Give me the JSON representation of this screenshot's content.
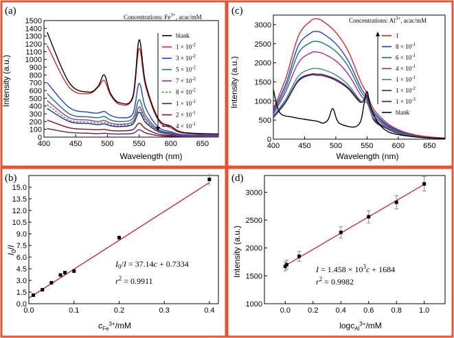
{
  "colors": {
    "frame": "#e8542d",
    "fit_line": "#c8102e",
    "marker": "#000000"
  },
  "chart_data": [
    {
      "panel": "(a)",
      "type": "line",
      "title": "",
      "legend_title": "Concentrations: Fe3+, acac/mM",
      "legend_title_parts": {
        "pre": "Concentrations: Fe",
        "sup": "3+",
        "post": ", acac/mM"
      },
      "legend_position": "top-right",
      "xlabel": "Wavelength (nm)",
      "ylabel": "Intensity (a.u.)",
      "xlim": [
        400,
        675
      ],
      "ylim": [
        0,
        1500
      ],
      "xticks": [
        "400",
        "450",
        "500",
        "550",
        "600",
        "650"
      ],
      "yticks": [
        "0",
        "100",
        "200",
        "300",
        "400",
        "500",
        "600",
        "700",
        "800",
        "900",
        "1000",
        "1100",
        "1200",
        "1300",
        "1400",
        "1500"
      ],
      "peaks_x": [
        405,
        440,
        470,
        485,
        495,
        505,
        520,
        540,
        550,
        560,
        580,
        600,
        620,
        675
      ],
      "series": [
        {
          "name": "blank",
          "label": {
            "base": "blank"
          },
          "color": "#000000",
          "dash": "",
          "values": [
            1350,
            700,
            580,
            650,
            800,
            560,
            440,
            520,
            1250,
            700,
            240,
            140,
            60,
            40
          ]
        },
        {
          "name": "1 × 10-2",
          "label": {
            "base": "1 × 10",
            "exp": "-2"
          },
          "color": "#d92828",
          "dash": "",
          "values": [
            1180,
            640,
            560,
            640,
            730,
            540,
            420,
            500,
            1140,
            660,
            220,
            120,
            50,
            30
          ]
        },
        {
          "name": "3 × 10-2",
          "label": {
            "base": "3 × 10",
            "exp": "-2"
          },
          "color": "#1f3fd6",
          "dash": "",
          "values": [
            700,
            380,
            320,
            310,
            330,
            280,
            250,
            300,
            690,
            380,
            130,
            70,
            30,
            20
          ]
        },
        {
          "name": "5 × 10-2",
          "label": {
            "base": "5 × 10",
            "exp": "-2"
          },
          "color": "#0f7a6c",
          "dash": "",
          "values": [
            560,
            300,
            260,
            250,
            265,
            220,
            200,
            240,
            480,
            280,
            100,
            55,
            25,
            15
          ]
        },
        {
          "name": "7 × 10-2",
          "label": {
            "base": "7 × 10",
            "exp": "-2"
          },
          "color": "#a42aa8",
          "dash": "",
          "values": [
            470,
            250,
            220,
            200,
            215,
            180,
            165,
            200,
            390,
            240,
            85,
            45,
            20,
            12
          ]
        },
        {
          "name": "8 × 10-2",
          "label": {
            "base": "8 × 10",
            "exp": "-2"
          },
          "color": "#3c9a2a",
          "dash": "3,2",
          "values": [
            420,
            220,
            195,
            180,
            190,
            160,
            150,
            180,
            350,
            210,
            75,
            40,
            18,
            10
          ]
        },
        {
          "name": "1 × 10-1",
          "label": {
            "base": "1 × 10",
            "exp": "-1"
          },
          "color": "#1b2c8a",
          "dash": "",
          "values": [
            370,
            200,
            175,
            160,
            170,
            145,
            135,
            165,
            320,
            190,
            70,
            35,
            15,
            8
          ]
        },
        {
          "name": "2 × 10-1",
          "label": {
            "base": "2 × 10",
            "exp": "-1"
          },
          "color": "#7a1020",
          "dash": "",
          "values": [
            220,
            120,
            100,
            95,
            100,
            85,
            80,
            95,
            180,
            110,
            40,
            20,
            10,
            5
          ]
        },
        {
          "name": "4 × 10-1",
          "label": {
            "base": "4 × 10",
            "exp": "-1"
          },
          "color": "#5b1f66",
          "dash": "",
          "values": [
            110,
            60,
            50,
            45,
            50,
            42,
            40,
            48,
            95,
            55,
            20,
            10,
            5,
            2
          ]
        }
      ]
    },
    {
      "panel": "(b)",
      "type": "scatter",
      "title": "",
      "xlabel": "cFe3+/mM",
      "xlabel_parts": {
        "pre": "c",
        "sub": "Fe",
        "sup": "3+",
        "post": "/mM"
      },
      "ylabel": "I0/I",
      "xlim": [
        0,
        0.42
      ],
      "ylim": [
        0,
        16.5
      ],
      "xticks": [
        "0.0",
        "0.1",
        "0.2",
        "0.3",
        "0.4"
      ],
      "yticks": [
        "0.0",
        "1.5",
        "3.0",
        "4.5",
        "6.0",
        "7.5",
        "9.0",
        "10.5",
        "12.0",
        "13.5",
        "15.0"
      ],
      "x": [
        0.01,
        0.03,
        0.05,
        0.07,
        0.08,
        0.1,
        0.2,
        0.4
      ],
      "y": [
        1.1,
        1.8,
        2.7,
        3.7,
        4.0,
        4.2,
        8.5,
        16.0
      ],
      "err": [
        0.1,
        0.1,
        0.1,
        0.15,
        0.15,
        0.15,
        0.3,
        0.8
      ],
      "fit": {
        "slope": 37.14,
        "intercept": 0.7334,
        "x_range": [
          0.0,
          0.4
        ]
      },
      "equation": "I0/I = 37.14c + 0.7334",
      "equation_parts": {
        "lhs": "I",
        "lhs_sub": "0",
        "slash": "/",
        "lhs2": "I",
        "rhs": " = 37.14",
        "var": "c",
        "tail": " + 0.7334"
      },
      "r2": "r2 = 0.9911",
      "r2_parts": {
        "r": "r",
        "sup": "2",
        "rest": " = 0.9911"
      }
    },
    {
      "panel": "(c)",
      "type": "line",
      "title": "",
      "legend_title": "Concentrations: Al3+, acac/mM",
      "legend_title_parts": {
        "pre": "Concentrations: Al",
        "sup": "3+",
        "post": ", acac/mM"
      },
      "legend_position": "top-right",
      "xlabel": "Wavelength (nm)",
      "ylabel": "Intensity (a.u.)",
      "xlim": [
        400,
        675
      ],
      "ylim": [
        0,
        3250
      ],
      "xticks": [
        "400",
        "450",
        "500",
        "550",
        "600",
        "650"
      ],
      "yticks": [
        "0",
        "500",
        "1000",
        "1500",
        "2000",
        "2500",
        "3000"
      ],
      "peaks_x": [
        400,
        420,
        440,
        460,
        470,
        480,
        500,
        520,
        540,
        550,
        560,
        580,
        600,
        625,
        650,
        675
      ],
      "series": [
        {
          "name": "1",
          "label": {
            "base": "1"
          },
          "color": "#d92828",
          "dash": "",
          "values": [
            800,
            1600,
            2700,
            3100,
            3150,
            3080,
            2800,
            2300,
            1500,
            1200,
            800,
            450,
            250,
            120,
            60,
            30
          ]
        },
        {
          "name": "8 × 10-1",
          "label": {
            "base": "8 × 10",
            "exp": "-1"
          },
          "color": "#1f3fd6",
          "dash": "",
          "values": [
            750,
            1450,
            2450,
            2780,
            2820,
            2760,
            2500,
            2050,
            1350,
            1100,
            730,
            410,
            230,
            110,
            55,
            28
          ]
        },
        {
          "name": "6 × 10-1",
          "label": {
            "base": "6 × 10",
            "exp": "-1"
          },
          "color": "#0f7a6c",
          "dash": "",
          "values": [
            700,
            1350,
            2250,
            2530,
            2560,
            2510,
            2300,
            1900,
            1250,
            1050,
            680,
            380,
            210,
            100,
            50,
            25
          ]
        },
        {
          "name": "4 × 10-1",
          "label": {
            "base": "4 × 10",
            "exp": "-1"
          },
          "color": "#a42aa8",
          "dash": "",
          "values": [
            650,
            1250,
            2000,
            2260,
            2280,
            2240,
            2050,
            1700,
            1150,
            1000,
            620,
            350,
            190,
            90,
            45,
            22
          ]
        },
        {
          "name": "1 × 10-1",
          "label": {
            "base": "1 × 10",
            "exp": "-1"
          },
          "color": "#3c8a6a",
          "dash": "",
          "values": [
            600,
            1050,
            1650,
            1840,
            1850,
            1820,
            1680,
            1420,
            1000,
            950,
            560,
            320,
            170,
            80,
            40,
            20
          ]
        },
        {
          "name": "1 × 10-2",
          "label": {
            "base": "1 × 10",
            "exp": "-2"
          },
          "color": "#1b2c8a",
          "dash": "",
          "values": [
            580,
            990,
            1550,
            1700,
            1700,
            1690,
            1570,
            1350,
            980,
            1080,
            540,
            300,
            160,
            75,
            38,
            18
          ]
        },
        {
          "name": "1 × 10-3",
          "label": {
            "base": "1 × 10",
            "exp": "-3"
          },
          "color": "#7a1020",
          "dash": "",
          "values": [
            560,
            970,
            1520,
            1680,
            1670,
            1660,
            1540,
            1320,
            960,
            1150,
            520,
            290,
            150,
            70,
            35,
            15
          ]
        }
      ],
      "blank": {
        "name": "blank",
        "label": {
          "base": "blank"
        },
        "color": "#000000",
        "x": [
          400,
          410,
          430,
          450,
          470,
          480,
          488,
          495,
          502,
          510,
          530,
          540,
          545,
          550,
          555,
          565,
          580,
          600,
          640,
          675
        ],
        "y": [
          1300,
          700,
          580,
          520,
          470,
          420,
          520,
          800,
          500,
          380,
          320,
          480,
          900,
          1250,
          900,
          500,
          230,
          120,
          40,
          20
        ]
      }
    },
    {
      "panel": "(d)",
      "type": "scatter",
      "title": "",
      "xlabel": "logcAl3+/mM",
      "xlabel_parts": {
        "pre": "logc",
        "sub": "Al",
        "sup": "3+",
        "post": "/mM"
      },
      "ylabel": "Intensity (a.u.)",
      "xlim": [
        -0.15,
        1.15
      ],
      "ylim": [
        1000,
        3300
      ],
      "xticks": [
        "0.0",
        "0.2",
        "0.4",
        "0.6",
        "0.8",
        "1.0"
      ],
      "yticks": [
        "1000",
        "1500",
        "2000",
        "2500",
        "3000"
      ],
      "x": [
        0.0,
        0.01,
        0.1,
        0.4,
        0.6,
        0.8,
        1.0
      ],
      "y": [
        1670,
        1700,
        1850,
        2280,
        2560,
        2820,
        3150
      ],
      "err": [
        80,
        80,
        90,
        100,
        110,
        120,
        130
      ],
      "fit": {
        "slope": 1458,
        "intercept": 1684,
        "x_range": [
          0.0,
          1.0
        ]
      },
      "equation": "I = 1.458 × 10³c + 1684",
      "equation_parts": {
        "lhs": "I",
        "rhs": " = 1.458 ×  10",
        "sup": "3",
        "var": "c",
        "tail": " + 1684"
      },
      "r2": "r2 = 0.9982",
      "r2_parts": {
        "r": "r",
        "sup": "2",
        "rest": " = 0.9982"
      }
    }
  ]
}
